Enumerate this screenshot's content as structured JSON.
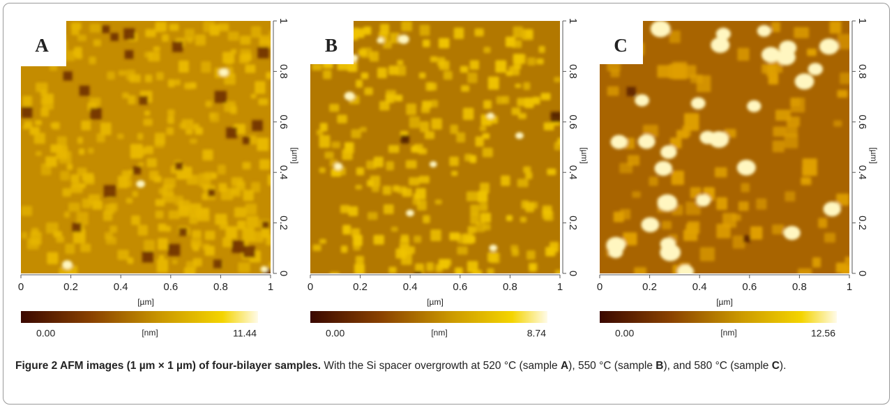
{
  "figure": {
    "panels": [
      {
        "label": "A",
        "xticks": [
          0,
          0.2,
          0.4,
          0.6,
          0.8,
          1
        ],
        "yticks": [
          0,
          0.2,
          0.4,
          0.6,
          0.8,
          1
        ],
        "x_unit": "[µm]",
        "y_unit": "[µm]",
        "colorbar": {
          "min": "0.00",
          "unit": "[nm]",
          "max": "11.44"
        }
      },
      {
        "label": "B",
        "xticks": [
          0,
          0.2,
          0.4,
          0.6,
          0.8,
          1
        ],
        "yticks": [
          0,
          0.2,
          0.4,
          0.6,
          0.8,
          1
        ],
        "x_unit": "[µm]",
        "y_unit": "[µm]",
        "colorbar": {
          "min": "0.00",
          "unit": "[nm]",
          "max": "8.74"
        }
      },
      {
        "label": "C",
        "xticks": [
          0,
          0.2,
          0.4,
          0.6,
          0.8,
          1
        ],
        "yticks": [
          0,
          0.2,
          0.4,
          0.6,
          0.8,
          1
        ],
        "x_unit": "[µm]",
        "y_unit": "[µm]",
        "colorbar": {
          "min": "0.00",
          "unit": "[nm]",
          "max": "12.56"
        }
      }
    ],
    "caption": {
      "title": "Figure 2 AFM images (1 µm × 1 µm) of four-bilayer samples.",
      "parts": [
        " With the Si spacer overgrowth at 520 °C (sample ",
        "A",
        "), 550 °C (sample ",
        "B",
        "), and 580 °C (sample ",
        "C",
        ")."
      ]
    }
  }
}
